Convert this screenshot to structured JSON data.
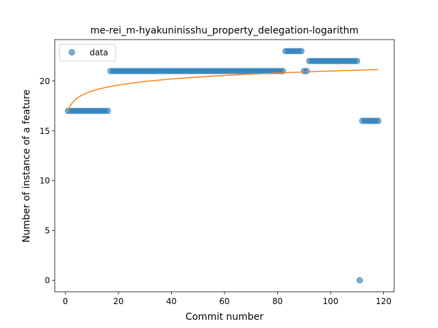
{
  "chart_data": {
    "type": "scatter",
    "title": "me-rei_m-hyakuninisshu_property_delegation-logarithm",
    "xlabel": "Commit number",
    "ylabel": "Number of instance of a feature",
    "xlim": [
      -4,
      124
    ],
    "ylim": [
      -1.15,
      24.15
    ],
    "xticks": [
      0,
      20,
      40,
      60,
      80,
      100,
      120
    ],
    "yticks": [
      0,
      5,
      10,
      15,
      20
    ],
    "grid": false,
    "legend": {
      "position": "top-left",
      "entries": [
        "data"
      ]
    },
    "colors": {
      "points": "#1f77b4",
      "fit": "#ff7f0e"
    },
    "series": [
      {
        "name": "data",
        "kind": "scatter",
        "x": [
          1,
          2,
          3,
          4,
          5,
          6,
          7,
          8,
          9,
          10,
          11,
          12,
          13,
          14,
          15,
          16,
          17,
          18,
          19,
          20,
          21,
          22,
          23,
          24,
          25,
          26,
          27,
          28,
          29,
          30,
          31,
          32,
          33,
          34,
          35,
          36,
          37,
          38,
          39,
          40,
          41,
          42,
          43,
          44,
          45,
          46,
          47,
          48,
          49,
          50,
          51,
          52,
          53,
          54,
          55,
          56,
          57,
          58,
          59,
          60,
          61,
          62,
          63,
          64,
          65,
          66,
          67,
          68,
          69,
          70,
          71,
          72,
          73,
          74,
          75,
          76,
          77,
          78,
          79,
          80,
          81,
          82,
          83,
          84,
          85,
          86,
          87,
          88,
          89,
          90,
          91,
          92,
          93,
          94,
          95,
          96,
          97,
          98,
          99,
          100,
          101,
          102,
          103,
          104,
          105,
          106,
          107,
          108,
          109,
          110,
          111,
          112,
          113,
          114,
          115,
          116,
          117,
          118
        ],
        "y": [
          17,
          17,
          17,
          17,
          17,
          17,
          17,
          17,
          17,
          17,
          17,
          17,
          17,
          17,
          17,
          17,
          21,
          21,
          21,
          21,
          21,
          21,
          21,
          21,
          21,
          21,
          21,
          21,
          21,
          21,
          21,
          21,
          21,
          21,
          21,
          21,
          21,
          21,
          21,
          21,
          21,
          21,
          21,
          21,
          21,
          21,
          21,
          21,
          21,
          21,
          21,
          21,
          21,
          21,
          21,
          21,
          21,
          21,
          21,
          21,
          21,
          21,
          21,
          21,
          21,
          21,
          21,
          21,
          21,
          21,
          21,
          21,
          21,
          21,
          21,
          21,
          21,
          21,
          21,
          21,
          21,
          21,
          23,
          23,
          23,
          23,
          23,
          23,
          23,
          21,
          21,
          22,
          22,
          22,
          22,
          22,
          22,
          22,
          22,
          22,
          22,
          22,
          22,
          22,
          22,
          22,
          22,
          22,
          22,
          22,
          0,
          16,
          16,
          16,
          16,
          16,
          16,
          16
        ]
      },
      {
        "kind": "line",
        "model": "logarithmic",
        "a": 16.97,
        "b": 0.875,
        "x_range": [
          1,
          118
        ]
      }
    ]
  }
}
